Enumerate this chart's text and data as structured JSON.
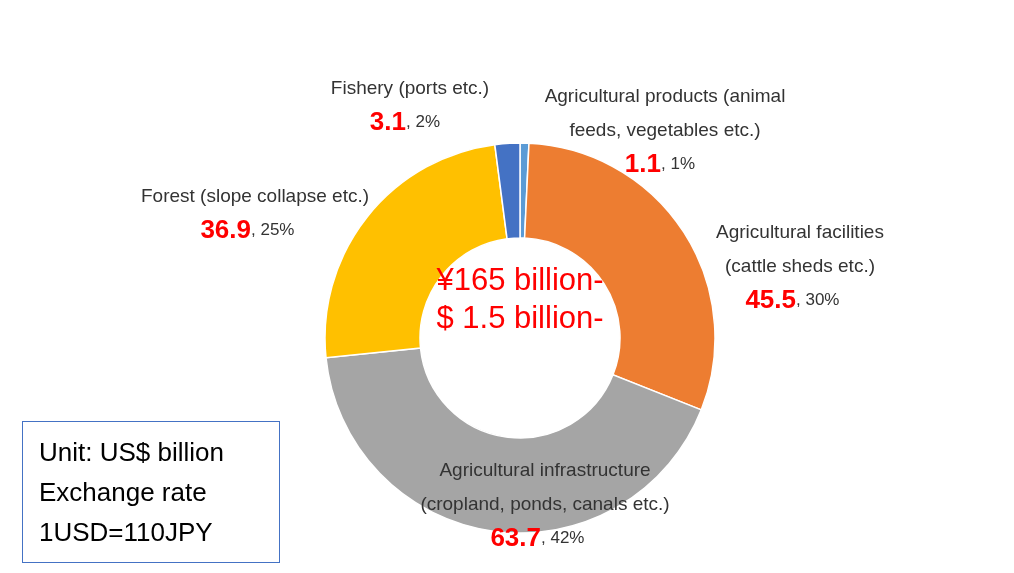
{
  "chart_data": {
    "type": "donut",
    "categories": [
      "Agricultural products (animal feeds, vegetables etc.)",
      "Agricultural facilities (cattle sheds etc.)",
      "Agricultural infrastructure (cropland, ponds, canals etc.)",
      "Forest (slope collapse etc.)",
      "Fishery (ports etc.)"
    ],
    "values": [
      1.1,
      45.5,
      63.7,
      36.9,
      3.1
    ],
    "colors": [
      "#5b9bd5",
      "#ed7d31",
      "#a5a5a5",
      "#ffc000",
      "#4472c4"
    ],
    "data_labels": true,
    "annotations": [
      ", 1%",
      ", 30%",
      ", 42%",
      ", 25%",
      ", 2%",
      "¥165 billion-",
      "$ 1.5 billion-",
      "Unit: US$ billion",
      "Exchange rate",
      "1USD=110JPY"
    ]
  }
}
